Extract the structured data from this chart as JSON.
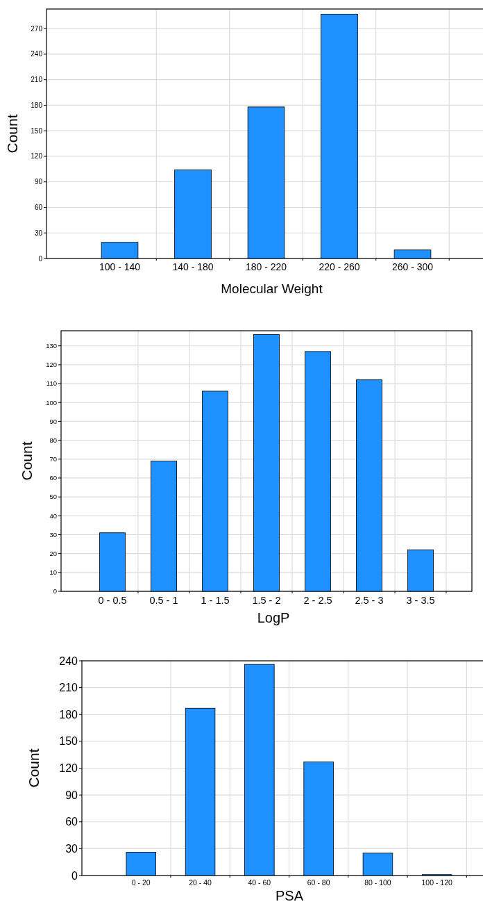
{
  "chart_data": [
    {
      "type": "bar",
      "xlabel": "Molecular Weight",
      "ylabel": "Count",
      "categories": [
        "100 - 140",
        "140 - 180",
        "180 - 220",
        "220 - 260",
        "260 - 300"
      ],
      "values": [
        19,
        104,
        178,
        287,
        10
      ],
      "color": "#1e90ff",
      "ylim": [
        0,
        293
      ],
      "yticks": [
        0,
        30,
        60,
        90,
        120,
        150,
        180,
        210,
        240,
        270
      ],
      "grid": true
    },
    {
      "type": "bar",
      "xlabel": "LogP",
      "ylabel": "Count",
      "categories": [
        "0 - 0.5",
        "0.5 - 1",
        "1 - 1.5",
        "1.5 - 2",
        "2 - 2.5",
        "2.5 - 3",
        "3 - 3.5"
      ],
      "values": [
        31,
        69,
        106,
        136,
        127,
        112,
        22
      ],
      "color": "#1e90ff",
      "ylim": [
        0,
        138
      ],
      "yticks": [
        0,
        10,
        20,
        30,
        40,
        50,
        60,
        70,
        80,
        90,
        100,
        110,
        120,
        130
      ],
      "grid": true
    },
    {
      "type": "bar",
      "xlabel": "PSA",
      "ylabel": "Count",
      "categories": [
        "0 - 20",
        "20 - 40",
        "40 - 60",
        "60 - 80",
        "80 - 100",
        "100 - 120"
      ],
      "values": [
        26,
        187,
        236,
        127,
        25,
        1
      ],
      "color": "#1e90ff",
      "ylim": [
        0,
        240
      ],
      "yticks": [
        0,
        30,
        60,
        90,
        120,
        150,
        180,
        210,
        240
      ],
      "grid": true
    }
  ]
}
